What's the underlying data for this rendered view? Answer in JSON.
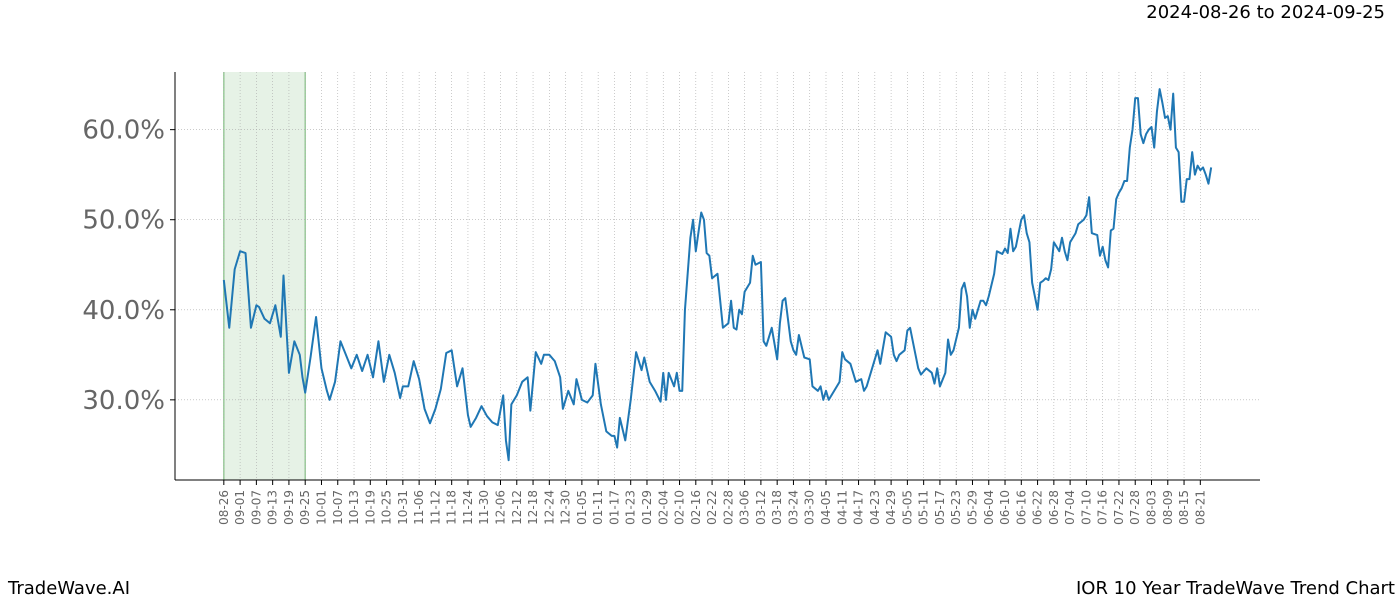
{
  "chart_data": {
    "type": "line",
    "date_range": "2024-08-26 to 2024-09-25",
    "brand": "TradeWave.AI",
    "title": "IOR 10 Year TradeWave Trend Chart",
    "grid": true,
    "shaded_xrange": [
      0,
      30
    ],
    "shade_color": "#e6f2e6",
    "xlim": [
      -18,
      382
    ],
    "ylim": [
      21.1,
      66.4
    ],
    "yticks": [
      {
        "value": 30,
        "label": "30.0%"
      },
      {
        "value": 40,
        "label": "40.0%"
      },
      {
        "value": 50,
        "label": "50.0%"
      },
      {
        "value": 60,
        "label": "60.0%"
      }
    ],
    "xticks": [
      {
        "value": 0,
        "label": "08-26"
      },
      {
        "value": 6,
        "label": "09-01"
      },
      {
        "value": 12,
        "label": "09-07"
      },
      {
        "value": 18,
        "label": "09-13"
      },
      {
        "value": 24,
        "label": "09-19"
      },
      {
        "value": 30,
        "label": "09-25"
      },
      {
        "value": 36,
        "label": "10-01"
      },
      {
        "value": 42,
        "label": "10-07"
      },
      {
        "value": 48,
        "label": "10-13"
      },
      {
        "value": 54,
        "label": "10-19"
      },
      {
        "value": 60,
        "label": "10-25"
      },
      {
        "value": 66,
        "label": "10-31"
      },
      {
        "value": 72,
        "label": "11-06"
      },
      {
        "value": 78,
        "label": "11-12"
      },
      {
        "value": 84,
        "label": "11-18"
      },
      {
        "value": 90,
        "label": "11-24"
      },
      {
        "value": 96,
        "label": "11-30"
      },
      {
        "value": 102,
        "label": "12-06"
      },
      {
        "value": 108,
        "label": "12-12"
      },
      {
        "value": 114,
        "label": "12-18"
      },
      {
        "value": 120,
        "label": "12-24"
      },
      {
        "value": 126,
        "label": "12-30"
      },
      {
        "value": 132,
        "label": "01-05"
      },
      {
        "value": 138,
        "label": "01-11"
      },
      {
        "value": 144,
        "label": "01-17"
      },
      {
        "value": 150,
        "label": "01-23"
      },
      {
        "value": 156,
        "label": "01-29"
      },
      {
        "value": 162,
        "label": "02-04"
      },
      {
        "value": 168,
        "label": "02-10"
      },
      {
        "value": 174,
        "label": "02-16"
      },
      {
        "value": 180,
        "label": "02-22"
      },
      {
        "value": 186,
        "label": "02-28"
      },
      {
        "value": 192,
        "label": "03-06"
      },
      {
        "value": 198,
        "label": "03-12"
      },
      {
        "value": 204,
        "label": "03-18"
      },
      {
        "value": 210,
        "label": "03-24"
      },
      {
        "value": 216,
        "label": "03-30"
      },
      {
        "value": 222,
        "label": "04-05"
      },
      {
        "value": 228,
        "label": "04-11"
      },
      {
        "value": 234,
        "label": "04-17"
      },
      {
        "value": 240,
        "label": "04-23"
      },
      {
        "value": 246,
        "label": "04-29"
      },
      {
        "value": 252,
        "label": "05-05"
      },
      {
        "value": 258,
        "label": "05-11"
      },
      {
        "value": 264,
        "label": "05-17"
      },
      {
        "value": 270,
        "label": "05-23"
      },
      {
        "value": 276,
        "label": "05-29"
      },
      {
        "value": 282,
        "label": "06-04"
      },
      {
        "value": 288,
        "label": "06-10"
      },
      {
        "value": 294,
        "label": "06-16"
      },
      {
        "value": 300,
        "label": "06-22"
      },
      {
        "value": 306,
        "label": "06-28"
      },
      {
        "value": 312,
        "label": "07-04"
      },
      {
        "value": 318,
        "label": "07-10"
      },
      {
        "value": 324,
        "label": "07-16"
      },
      {
        "value": 330,
        "label": "07-22"
      },
      {
        "value": 336,
        "label": "07-28"
      },
      {
        "value": 342,
        "label": "08-03"
      },
      {
        "value": 348,
        "label": "08-09"
      },
      {
        "value": 354,
        "label": "08-15"
      },
      {
        "value": 360,
        "label": "08-21"
      }
    ],
    "series": [
      {
        "color": "#1f77b4",
        "x": [
          0,
          2,
          4,
          6,
          8,
          10,
          12,
          13,
          15,
          17,
          19,
          21,
          22,
          24,
          26,
          28,
          29,
          30,
          32,
          34,
          36,
          38,
          39,
          41,
          43,
          45,
          47,
          49,
          51,
          53,
          55,
          57,
          59,
          61,
          63,
          65,
          66,
          68,
          70,
          72,
          74,
          76,
          78,
          80,
          82,
          84,
          86,
          88,
          90,
          91,
          93,
          95,
          97,
          99,
          101,
          103,
          104,
          105,
          106,
          108,
          110,
          112,
          113,
          115,
          117,
          118,
          120,
          122,
          124,
          125,
          127,
          129,
          130,
          132,
          134,
          136,
          137,
          139,
          141,
          143,
          144,
          145,
          146,
          148,
          150,
          152,
          154,
          155,
          157,
          159,
          161,
          162,
          163,
          164,
          166,
          167,
          168,
          169,
          170,
          172,
          173,
          174,
          176,
          177,
          178,
          179,
          180,
          182,
          184,
          186,
          187,
          188,
          189,
          190,
          191,
          192,
          194,
          195,
          196,
          198,
          199,
          200,
          202,
          204,
          205,
          206,
          207,
          209,
          210,
          211,
          212,
          214,
          216,
          217,
          219,
          220,
          221,
          222,
          223,
          225,
          227,
          228,
          229,
          231,
          233,
          235,
          236,
          237,
          239,
          241,
          242,
          244,
          246,
          247,
          248,
          249,
          251,
          252,
          253,
          255,
          256,
          257,
          259,
          261,
          262,
          263,
          264,
          266,
          267,
          268,
          269,
          271,
          272,
          273,
          274,
          275,
          276,
          277,
          278,
          279,
          280,
          281,
          282,
          284,
          285,
          287,
          288,
          289,
          290,
          291,
          292,
          294,
          295,
          296,
          297,
          298,
          299,
          300,
          301,
          302,
          303,
          304,
          305,
          306,
          308,
          309,
          310,
          311,
          312,
          314,
          315,
          317,
          318,
          319,
          320,
          322,
          323,
          324,
          325,
          326,
          327,
          328,
          329,
          330,
          331,
          332,
          333,
          334,
          335,
          336,
          337,
          338,
          339,
          340,
          341,
          342,
          343,
          344,
          345,
          346,
          347,
          348,
          349,
          350,
          351,
          352,
          353,
          354,
          355,
          356,
          357,
          358,
          359,
          360,
          361,
          362,
          363,
          364
        ],
        "values": [
          43.3,
          38,
          44.5,
          46.5,
          46.3,
          38,
          40.5,
          40.3,
          39,
          38.5,
          40.5,
          37,
          43.8,
          33,
          36.5,
          35,
          32.5,
          30.8,
          34.8,
          39.2,
          33.5,
          31,
          30,
          32,
          36.5,
          35,
          33.5,
          35,
          33.2,
          35,
          32.5,
          36.5,
          32,
          35,
          33,
          30.2,
          31.5,
          31.5,
          34.3,
          32.3,
          29,
          27.4,
          29,
          31.2,
          35.2,
          35.5,
          31.5,
          33.5,
          28.3,
          27,
          28,
          29.3,
          28.2,
          27.5,
          27.2,
          30.5,
          25.5,
          23.3,
          29.5,
          30.5,
          32,
          32.5,
          28.8,
          35.3,
          34,
          35,
          35,
          34.3,
          32.5,
          29,
          31,
          29.5,
          32.3,
          30,
          29.7,
          30.5,
          34,
          29.5,
          26.5,
          26,
          26,
          24.7,
          28,
          25.5,
          30,
          35.3,
          33.3,
          34.7,
          32,
          31,
          29.8,
          33,
          30,
          33,
          31.5,
          33,
          31,
          31,
          40,
          48,
          50,
          46.5,
          50.8,
          50,
          46.3,
          46,
          43.5,
          44,
          38,
          38.5,
          41,
          38,
          37.8,
          40,
          39.5,
          42,
          43,
          46,
          45,
          45.3,
          36.5,
          36,
          38,
          34.5,
          38.5,
          41,
          41.3,
          36.5,
          35.5,
          35,
          37.2,
          34.7,
          34.5,
          31.5,
          31,
          31.5,
          30,
          31,
          30,
          31,
          32,
          35.3,
          34.5,
          34,
          32,
          32.3,
          31,
          31.5,
          33.5,
          35.5,
          34,
          37.5,
          37,
          35,
          34.3,
          35,
          35.5,
          37.7,
          38,
          35,
          33.5,
          32.8,
          33.5,
          33,
          31.8,
          33.5,
          31.5,
          33,
          36.7,
          35,
          35.5,
          38,
          42.3,
          43,
          41.5,
          38,
          40,
          39,
          40,
          41,
          41,
          40.5,
          41.5,
          44,
          46.5,
          46.2,
          46.8,
          46.3,
          49,
          46.5,
          47,
          50,
          50.5,
          48.5,
          47.5,
          43,
          41.5,
          40,
          43,
          43.2,
          43.5,
          43.3,
          44.5,
          47.5,
          46.5,
          48,
          46.5,
          45.5,
          47.5,
          48.5,
          49.5,
          50,
          50.5,
          52.5,
          48.5,
          48.3,
          46,
          47,
          45.5,
          44.7,
          48.8,
          49,
          52.3,
          53,
          53.5,
          54.3,
          54.3,
          58,
          60,
          63.5,
          63.5,
          59.5,
          58.5,
          59.5,
          60,
          60.3,
          58,
          62,
          64.5,
          63,
          61.3,
          61.5,
          60,
          64,
          58,
          57.5,
          52,
          52,
          54.5,
          54.5,
          57.5,
          55,
          56,
          55.5,
          55.8,
          55,
          54,
          55.8
        ]
      }
    ]
  }
}
